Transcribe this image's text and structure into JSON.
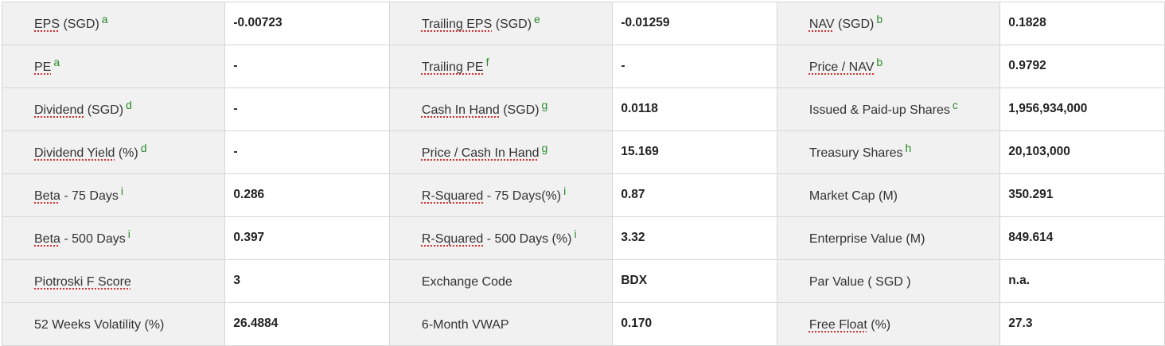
{
  "rows": [
    [
      {
        "u": "EPS",
        "r": " (SGD)",
        "s": "a",
        "v": "-0.00723"
      },
      {
        "u": "Trailing EPS",
        "r": " (SGD)",
        "s": "e",
        "v": "-0.01259"
      },
      {
        "u": "NAV",
        "r": " (SGD)",
        "s": "b",
        "v": "0.1828"
      }
    ],
    [
      {
        "u": "PE",
        "r": "",
        "s": "a",
        "v": "-"
      },
      {
        "u": "Trailing PE",
        "r": "",
        "s": "f",
        "v": "-"
      },
      {
        "u": "Price / NAV",
        "r": "",
        "s": "b",
        "v": "0.9792"
      }
    ],
    [
      {
        "u": "Dividend",
        "r": " (SGD)",
        "s": "d",
        "v": "-"
      },
      {
        "u": "Cash In Hand",
        "r": " (SGD)",
        "s": "g",
        "v": "0.0118"
      },
      {
        "u": "",
        "r": "Issued & Paid-up Shares",
        "s": "c",
        "v": "1,956,934,000"
      }
    ],
    [
      {
        "u": "Dividend Yield",
        "r": " (%)",
        "s": "d",
        "v": "-"
      },
      {
        "u": "Price / Cash In Hand",
        "r": "",
        "s": "g",
        "v": "15.169"
      },
      {
        "u": "",
        "r": "Treasury Shares",
        "s": "h",
        "v": "20,103,000"
      }
    ],
    [
      {
        "u": "Beta",
        "r": " - 75 Days",
        "s": "i",
        "v": "0.286"
      },
      {
        "u": "R-Squared",
        "r": " - 75 Days(%)",
        "s": "i",
        "v": "0.87"
      },
      {
        "u": "",
        "r": "Market Cap (M)",
        "s": "",
        "v": "350.291"
      }
    ],
    [
      {
        "u": "Beta",
        "r": " - 500 Days",
        "s": "i",
        "v": "0.397"
      },
      {
        "u": "R-Squared",
        "r": " - 500 Days (%)",
        "s": "i",
        "v": "3.32"
      },
      {
        "u": "",
        "r": "Enterprise Value (M)",
        "s": "",
        "v": "849.614"
      }
    ],
    [
      {
        "u": "Piotroski F Score",
        "r": "",
        "s": "",
        "v": "3"
      },
      {
        "u": "",
        "r": "Exchange Code",
        "s": "",
        "v": "BDX"
      },
      {
        "u": "",
        "r": "Par Value ( SGD )",
        "s": "",
        "v": "n.a."
      }
    ],
    [
      {
        "u": "",
        "r": "52 Weeks Volatility (%)",
        "s": "",
        "v": "26.4884"
      },
      {
        "u": "",
        "r": "6-Month VWAP",
        "s": "",
        "v": "0.170"
      },
      {
        "u": "Free Float",
        "r": " (%)",
        "s": "",
        "v": "27.3"
      }
    ]
  ]
}
